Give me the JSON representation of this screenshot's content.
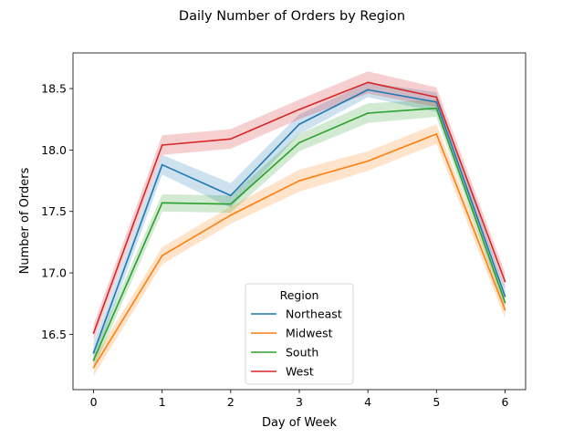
{
  "chart_data": {
    "type": "line",
    "title": "Daily Number of Orders by Region",
    "xlabel": "Day of Week",
    "ylabel": "Number of Orders",
    "x": [
      0,
      1,
      2,
      3,
      4,
      5,
      6
    ],
    "xlim": [
      -0.3,
      6.3
    ],
    "ylim": [
      16.05,
      18.79
    ],
    "xticks": [
      0,
      1,
      2,
      3,
      4,
      5,
      6
    ],
    "yticks": [
      16.5,
      17.0,
      17.5,
      18.0,
      18.5
    ],
    "ytick_labels": [
      "16.5",
      "17.0",
      "17.5",
      "18.0",
      "18.5"
    ],
    "legend": {
      "title": "Region",
      "position": "lower center"
    },
    "series": [
      {
        "name": "Northeast",
        "color": "#1f77b4",
        "values": [
          16.35,
          17.88,
          17.63,
          18.21,
          18.49,
          18.39,
          16.81
        ],
        "ci_low": [
          16.27,
          17.8,
          17.53,
          18.13,
          18.43,
          18.31,
          16.75
        ],
        "ci_high": [
          16.43,
          17.96,
          17.73,
          18.29,
          18.55,
          18.47,
          16.87
        ]
      },
      {
        "name": "Midwest",
        "color": "#ff7f0e",
        "values": [
          16.23,
          17.14,
          17.47,
          17.75,
          17.91,
          18.13,
          16.7
        ],
        "ci_low": [
          16.16,
          17.07,
          17.4,
          17.66,
          17.83,
          18.05,
          16.63
        ],
        "ci_high": [
          16.3,
          17.21,
          17.54,
          17.84,
          17.99,
          18.21,
          16.77
        ]
      },
      {
        "name": "South",
        "color": "#2ca02c",
        "values": [
          16.29,
          17.57,
          17.56,
          18.06,
          18.3,
          18.34,
          16.76
        ],
        "ci_low": [
          16.22,
          17.5,
          17.49,
          17.99,
          18.22,
          18.27,
          16.7
        ],
        "ci_high": [
          16.36,
          17.64,
          17.63,
          18.13,
          18.38,
          18.41,
          16.82
        ]
      },
      {
        "name": "West",
        "color": "#d62728",
        "values": [
          16.51,
          18.04,
          18.09,
          18.33,
          18.55,
          18.43,
          16.93
        ],
        "ci_low": [
          16.44,
          17.96,
          18.01,
          18.25,
          18.46,
          18.35,
          16.86
        ],
        "ci_high": [
          16.58,
          18.12,
          18.17,
          18.41,
          18.64,
          18.51,
          17.0
        ]
      }
    ]
  }
}
